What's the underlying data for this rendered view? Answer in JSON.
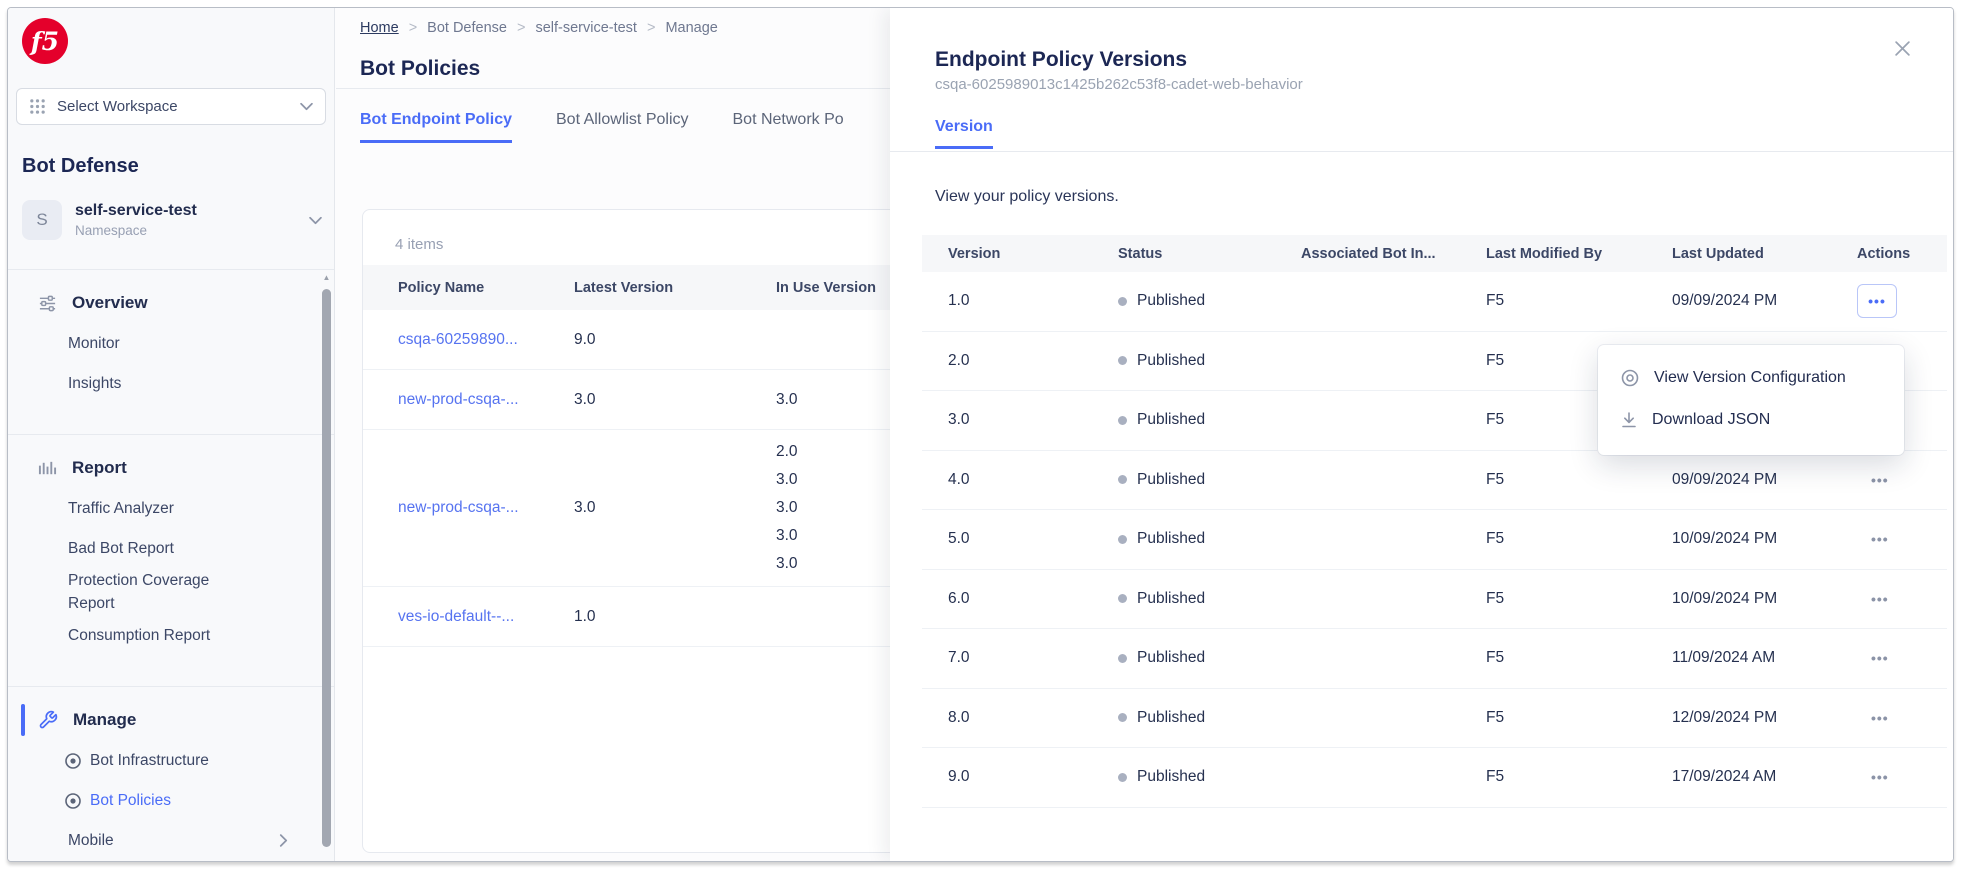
{
  "colors": {
    "accent_blue": "#4a6cf7",
    "brand_red": "#e4002b",
    "status_dot_gray": "#a9b0c0",
    "heading_navy": "#1c2754"
  },
  "sidebar": {
    "logo_text": "f5",
    "workspace_selector": "Select Workspace",
    "title": "Bot Defense",
    "namespace": {
      "initial": "S",
      "name": "self-service-test",
      "type": "Namespace"
    },
    "sections": [
      {
        "label": "Overview",
        "icon": "sliders-icon",
        "active": false,
        "items": [
          {
            "label": "Monitor"
          },
          {
            "label": "Insights"
          }
        ]
      },
      {
        "label": "Report",
        "icon": "bar-chart-icon",
        "active": false,
        "items": [
          {
            "label": "Traffic Analyzer"
          },
          {
            "label": "Bad Bot Report"
          },
          {
            "label": "Protection Coverage Report"
          },
          {
            "label": "Consumption Report"
          }
        ]
      },
      {
        "label": "Manage",
        "icon": "wrench-icon",
        "active": true,
        "items": [
          {
            "label": "Bot Infrastructure",
            "icon": "target-icon"
          },
          {
            "label": "Bot Policies",
            "icon": "target-icon",
            "active": true
          },
          {
            "label": "Mobile",
            "chevron": true
          }
        ]
      }
    ]
  },
  "main": {
    "breadcrumb": [
      "Home",
      "Bot Defense",
      "self-service-test",
      "Manage"
    ],
    "title": "Bot Policies",
    "tabs": [
      {
        "label": "Bot Endpoint Policy",
        "active": true
      },
      {
        "label": "Bot Allowlist Policy",
        "active": false
      },
      {
        "label": "Bot Network Po",
        "active": false
      }
    ],
    "items_count": "4 items",
    "table": {
      "columns": [
        "Policy Name",
        "Latest Version",
        "In Use Version"
      ],
      "rows": [
        {
          "policy_name": "csqa-60259890...",
          "latest_version": "9.0",
          "in_use_versions": []
        },
        {
          "policy_name": "new-prod-csqa-...",
          "latest_version": "3.0",
          "in_use_versions": [
            "3.0"
          ]
        },
        {
          "policy_name": "new-prod-csqa-...",
          "latest_version": "3.0",
          "in_use_versions": [
            "2.0",
            "3.0",
            "3.0",
            "3.0",
            "3.0"
          ]
        },
        {
          "policy_name": "ves-io-default--...",
          "latest_version": "1.0",
          "in_use_versions": []
        }
      ]
    }
  },
  "panel": {
    "title": "Endpoint Policy Versions",
    "subtitle": "csqa-6025989013c1425b262c53f8-cadet-web-behavior",
    "tabs": [
      {
        "label": "Version",
        "active": true
      }
    ],
    "description": "View your policy versions.",
    "table": {
      "columns": [
        "Version",
        "Status",
        "Associated Bot In...",
        "Last Modified By",
        "Last Updated",
        "Actions"
      ],
      "rows": [
        {
          "version": "1.0",
          "status": "Published",
          "modified_by": "F5",
          "last_updated": "09/09/2024 PM",
          "menu_open": true
        },
        {
          "version": "2.0",
          "status": "Published",
          "modified_by": "F5",
          "last_updated": ""
        },
        {
          "version": "3.0",
          "status": "Published",
          "modified_by": "F5",
          "last_updated": ""
        },
        {
          "version": "4.0",
          "status": "Published",
          "modified_by": "F5",
          "last_updated": "09/09/2024 PM"
        },
        {
          "version": "5.0",
          "status": "Published",
          "modified_by": "F5",
          "last_updated": "10/09/2024 PM"
        },
        {
          "version": "6.0",
          "status": "Published",
          "modified_by": "F5",
          "last_updated": "10/09/2024 PM"
        },
        {
          "version": "7.0",
          "status": "Published",
          "modified_by": "F5",
          "last_updated": "11/09/2024 AM"
        },
        {
          "version": "8.0",
          "status": "Published",
          "modified_by": "F5",
          "last_updated": "12/09/2024 PM"
        },
        {
          "version": "9.0",
          "status": "Published",
          "modified_by": "F5",
          "last_updated": "17/09/2024 AM"
        }
      ]
    },
    "context_menu": {
      "items": [
        {
          "icon": "view-icon",
          "label": "View Version Configuration"
        },
        {
          "icon": "download-icon",
          "label": "Download JSON"
        }
      ]
    }
  }
}
